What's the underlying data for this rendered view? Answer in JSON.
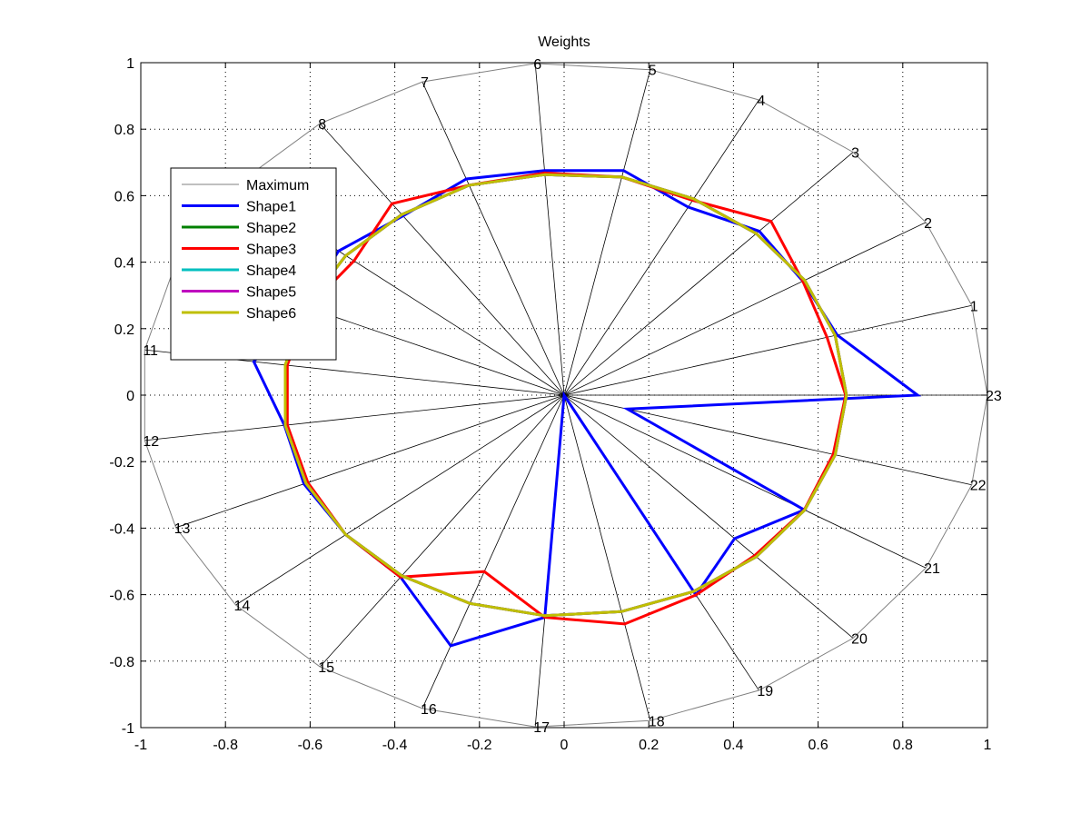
{
  "chart_data": {
    "type": "radar",
    "title": "Weights",
    "xlim": [
      -1,
      1
    ],
    "ylim": [
      -1,
      1
    ],
    "xticks": [
      "-1",
      "-0.8",
      "-0.6",
      "-0.4",
      "-0.2",
      "0",
      "0.2",
      "0.4",
      "0.6",
      "0.8",
      "1"
    ],
    "yticks": [
      "-1",
      "-0.8",
      "-0.6",
      "-0.4",
      "-0.2",
      "0",
      "0.2",
      "0.4",
      "0.6",
      "0.8",
      "1"
    ],
    "grid": true,
    "legend_position": "upper-left",
    "spokes": [
      "1",
      "2",
      "3",
      "4",
      "5",
      "6",
      "7",
      "8",
      "9",
      "10",
      "11",
      "12",
      "13",
      "14",
      "15",
      "16",
      "17",
      "18",
      "19",
      "20",
      "21",
      "22",
      "23"
    ],
    "series": [
      {
        "name": "Maximum",
        "color": "#808080",
        "values": [
          1,
          1,
          1,
          1,
          1,
          1,
          1,
          1,
          1,
          1,
          1,
          1,
          1,
          1,
          1,
          1,
          1,
          1,
          1,
          1,
          1,
          1,
          1
        ]
      },
      {
        "name": "Shape1",
        "color": "#0000ff",
        "values": [
          0.67,
          0.66,
          0.675,
          0.637,
          0.69,
          0.677,
          0.69,
          0.66,
          0.687,
          0.67,
          0.74,
          0.667,
          0.67,
          0.665,
          0.67,
          0.8,
          0.67,
          0,
          0.677,
          0.59,
          0.664,
          0.155,
          0.835
        ]
      },
      {
        "name": "Shape2",
        "color": "#008000",
        "values": [
          0.665,
          0.665,
          0.665,
          0.665,
          0.67,
          0.665,
          0.67,
          0.665,
          0.665,
          0.665,
          0.665,
          0.665,
          0.665,
          0.665,
          0.665,
          0.665,
          0.665,
          0.665,
          0.665,
          0.665,
          0.665,
          0.665,
          0.667
        ]
      },
      {
        "name": "Shape3",
        "color": "#ff0000",
        "values": [
          0.645,
          0.66,
          0.716,
          0.66,
          0.67,
          0.67,
          0.67,
          0.705,
          0.64,
          0.66,
          0.66,
          0.66,
          0.66,
          0.665,
          0.67,
          0.563,
          0.67,
          0.703,
          0.677,
          0.66,
          0.664,
          0.66,
          0.665
        ]
      },
      {
        "name": "Shape4",
        "color": "#00bfbf",
        "values": [
          0.665,
          0.665,
          0.665,
          0.665,
          0.67,
          0.665,
          0.67,
          0.665,
          0.665,
          0.665,
          0.665,
          0.665,
          0.665,
          0.665,
          0.665,
          0.665,
          0.665,
          0.665,
          0.665,
          0.665,
          0.665,
          0.665,
          0.667
        ]
      },
      {
        "name": "Shape5",
        "color": "#bf00bf",
        "values": [
          0.665,
          0.665,
          0.665,
          0.665,
          0.67,
          0.665,
          0.67,
          0.665,
          0.665,
          0.665,
          0.665,
          0.665,
          0.665,
          0.665,
          0.665,
          0.665,
          0.665,
          0.665,
          0.665,
          0.665,
          0.665,
          0.665,
          0.667
        ]
      },
      {
        "name": "Shape6",
        "color": "#bfbf00",
        "values": [
          0.665,
          0.665,
          0.665,
          0.665,
          0.67,
          0.665,
          0.67,
          0.665,
          0.665,
          0.665,
          0.665,
          0.665,
          0.665,
          0.665,
          0.665,
          0.665,
          0.665,
          0.665,
          0.665,
          0.665,
          0.665,
          0.665,
          0.667
        ]
      }
    ]
  }
}
